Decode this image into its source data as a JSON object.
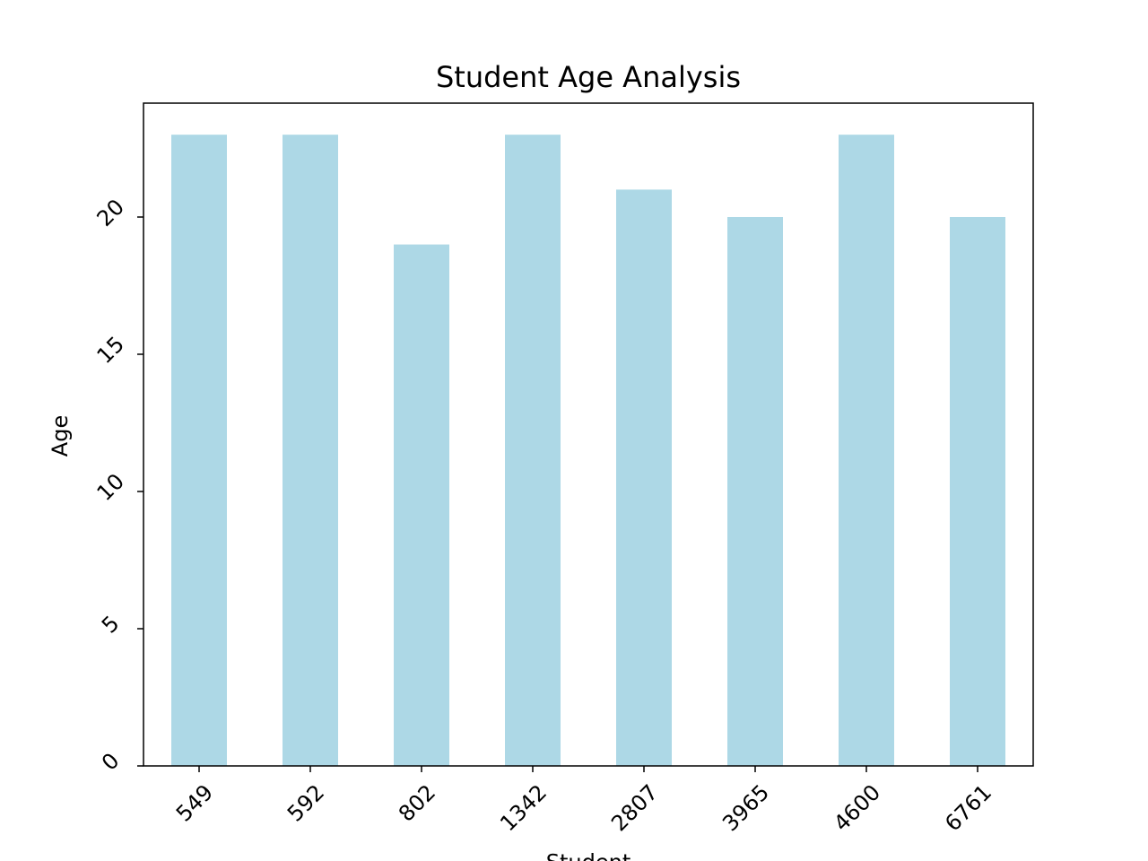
{
  "chart_data": {
    "type": "bar",
    "title": "Student Age Analysis",
    "x_label": "Student",
    "y_label": "Age",
    "categories": [
      "549",
      "592",
      "802",
      "1342",
      "2807",
      "3965",
      "4600",
      "6761"
    ],
    "values": [
      23,
      23,
      19,
      23,
      21,
      20,
      23,
      20
    ],
    "color": "#add8e6",
    "ylim": [
      0,
      24.15
    ],
    "yticks": [
      0,
      5,
      10,
      15,
      20
    ],
    "grid": false
  }
}
